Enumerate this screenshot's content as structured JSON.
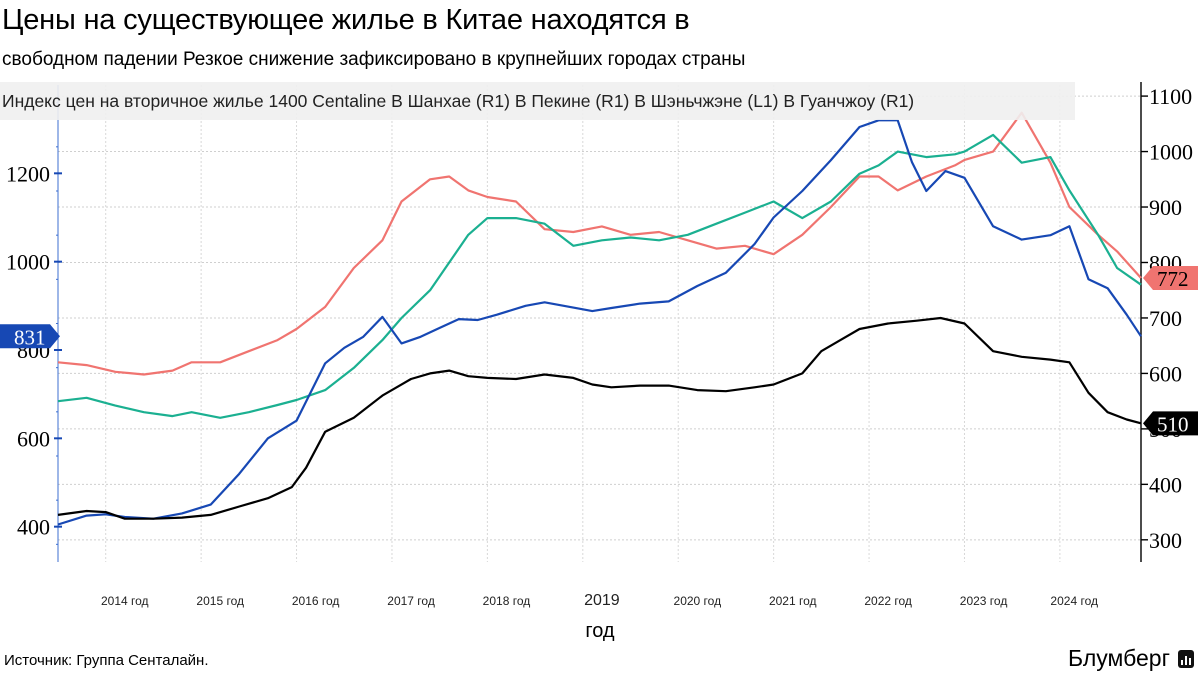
{
  "header": {
    "title": "Цены на существующее жилье в Китае находятся в",
    "subtitle": "свободном падении Резкое снижение зафиксировано в крупнейших городах страны"
  },
  "footer": {
    "source": "Источник: Группа Сенталайн.",
    "brand": "Блумберг",
    "brand_icon": "bar-chart-icon"
  },
  "chart_data": {
    "type": "line",
    "legend_text": "Индекс цен на вторичное жилье 1400 Centaline В Шанхае (R1) В Пекине (R1) В Шэньчжэне (L1) В Гуанчжоу (R1)",
    "legend_position": "top-left",
    "xlabel": "год",
    "x_range": [
      2013.5,
      2024.85
    ],
    "x_ticks": [
      {
        "x": 2014.2,
        "label": "2014 год"
      },
      {
        "x": 2015.2,
        "label": "2015 год"
      },
      {
        "x": 2016.2,
        "label": "2016 год"
      },
      {
        "x": 2017.2,
        "label": "2017 год"
      },
      {
        "x": 2018.2,
        "label": "2018 год"
      },
      {
        "x": 2019.2,
        "label": "2019"
      },
      {
        "x": 2020.2,
        "label": "2020 год"
      },
      {
        "x": 2021.2,
        "label": "2021 год"
      },
      {
        "x": 2022.2,
        "label": "2022 год"
      },
      {
        "x": 2023.2,
        "label": "2023 год"
      },
      {
        "x": 2024.15,
        "label": "2024 год"
      }
    ],
    "left_axis": {
      "ylim": [
        320,
        1400
      ],
      "ticks": [
        400,
        600,
        800,
        1000,
        1200
      ]
    },
    "right_axis": {
      "ylim": [
        260,
        1120
      ],
      "ticks": [
        300,
        400,
        500,
        600,
        700,
        800,
        900,
        1000,
        1100
      ]
    },
    "grid": true,
    "end_labels": [
      {
        "series": "Шэньчжэнь",
        "label": "831",
        "value": 831,
        "axis": "left",
        "side": "left",
        "color": "#1748b4",
        "text_color": "#ffffff"
      },
      {
        "series": "Шанхай",
        "label": "772",
        "value": 772,
        "axis": "right",
        "side": "right",
        "color": "#f07470",
        "text_color": "#000000"
      },
      {
        "series": "Гуанчжоу",
        "label": "510",
        "value": 510,
        "axis": "right",
        "side": "right",
        "color": "#000000",
        "text_color": "#ffffff"
      }
    ],
    "series": [
      {
        "name": "В Шанхае",
        "axis": "right",
        "color": "#f07470",
        "points": [
          [
            2013.5,
            620
          ],
          [
            2013.8,
            615
          ],
          [
            2014.1,
            603
          ],
          [
            2014.4,
            598
          ],
          [
            2014.7,
            605
          ],
          [
            2014.9,
            620
          ],
          [
            2015.2,
            620
          ],
          [
            2015.5,
            640
          ],
          [
            2015.8,
            660
          ],
          [
            2016.0,
            680
          ],
          [
            2016.3,
            720
          ],
          [
            2016.6,
            790
          ],
          [
            2016.9,
            840
          ],
          [
            2017.1,
            910
          ],
          [
            2017.4,
            950
          ],
          [
            2017.6,
            955
          ],
          [
            2017.8,
            930
          ],
          [
            2018.0,
            918
          ],
          [
            2018.3,
            910
          ],
          [
            2018.6,
            860
          ],
          [
            2018.9,
            855
          ],
          [
            2019.2,
            865
          ],
          [
            2019.5,
            850
          ],
          [
            2019.8,
            855
          ],
          [
            2020.1,
            840
          ],
          [
            2020.4,
            825
          ],
          [
            2020.7,
            830
          ],
          [
            2021.0,
            815
          ],
          [
            2021.3,
            850
          ],
          [
            2021.6,
            900
          ],
          [
            2021.9,
            955
          ],
          [
            2022.1,
            955
          ],
          [
            2022.3,
            930
          ],
          [
            2022.6,
            955
          ],
          [
            2022.9,
            975
          ],
          [
            2023.0,
            985
          ],
          [
            2023.3,
            1000
          ],
          [
            2023.6,
            1070
          ],
          [
            2023.9,
            980
          ],
          [
            2024.1,
            900
          ],
          [
            2024.4,
            850
          ],
          [
            2024.6,
            820
          ],
          [
            2024.85,
            772
          ]
        ]
      },
      {
        "name": "В Пекине",
        "axis": "right",
        "color": "#1bb091",
        "points": [
          [
            2013.5,
            550
          ],
          [
            2013.8,
            556
          ],
          [
            2014.1,
            542
          ],
          [
            2014.4,
            530
          ],
          [
            2014.7,
            523
          ],
          [
            2014.9,
            530
          ],
          [
            2015.2,
            520
          ],
          [
            2015.5,
            530
          ],
          [
            2015.8,
            543
          ],
          [
            2016.0,
            552
          ],
          [
            2016.3,
            570
          ],
          [
            2016.6,
            610
          ],
          [
            2016.9,
            660
          ],
          [
            2017.1,
            700
          ],
          [
            2017.4,
            750
          ],
          [
            2017.6,
            800
          ],
          [
            2017.8,
            850
          ],
          [
            2018.0,
            880
          ],
          [
            2018.3,
            880
          ],
          [
            2018.6,
            870
          ],
          [
            2018.9,
            830
          ],
          [
            2019.2,
            840
          ],
          [
            2019.5,
            845
          ],
          [
            2019.8,
            840
          ],
          [
            2020.1,
            850
          ],
          [
            2020.4,
            870
          ],
          [
            2020.7,
            890
          ],
          [
            2021.0,
            910
          ],
          [
            2021.3,
            880
          ],
          [
            2021.6,
            910
          ],
          [
            2021.9,
            960
          ],
          [
            2022.1,
            975
          ],
          [
            2022.3,
            1000
          ],
          [
            2022.6,
            990
          ],
          [
            2022.9,
            995
          ],
          [
            2023.0,
            1000
          ],
          [
            2023.3,
            1030
          ],
          [
            2023.6,
            980
          ],
          [
            2023.9,
            990
          ],
          [
            2024.1,
            930
          ],
          [
            2024.4,
            850
          ],
          [
            2024.6,
            790
          ],
          [
            2024.85,
            760
          ]
        ]
      },
      {
        "name": "В Шэньчжэне",
        "axis": "left",
        "color": "#1748b4",
        "points": [
          [
            2013.5,
            405
          ],
          [
            2013.8,
            425
          ],
          [
            2014.0,
            428
          ],
          [
            2014.2,
            422
          ],
          [
            2014.5,
            418
          ],
          [
            2014.8,
            430
          ],
          [
            2015.1,
            450
          ],
          [
            2015.4,
            520
          ],
          [
            2015.7,
            600
          ],
          [
            2016.0,
            640
          ],
          [
            2016.3,
            770
          ],
          [
            2016.5,
            805
          ],
          [
            2016.7,
            830
          ],
          [
            2016.9,
            875
          ],
          [
            2017.1,
            815
          ],
          [
            2017.3,
            830
          ],
          [
            2017.5,
            850
          ],
          [
            2017.7,
            870
          ],
          [
            2017.9,
            868
          ],
          [
            2018.1,
            880
          ],
          [
            2018.4,
            900
          ],
          [
            2018.6,
            908
          ],
          [
            2018.9,
            896
          ],
          [
            2019.1,
            888
          ],
          [
            2019.3,
            895
          ],
          [
            2019.6,
            905
          ],
          [
            2019.9,
            910
          ],
          [
            2020.2,
            945
          ],
          [
            2020.5,
            975
          ],
          [
            2020.8,
            1040
          ],
          [
            2021.0,
            1100
          ],
          [
            2021.3,
            1160
          ],
          [
            2021.6,
            1230
          ],
          [
            2021.9,
            1305
          ],
          [
            2022.1,
            1320
          ],
          [
            2022.3,
            1320
          ],
          [
            2022.45,
            1225
          ],
          [
            2022.6,
            1160
          ],
          [
            2022.8,
            1205
          ],
          [
            2023.0,
            1190
          ],
          [
            2023.3,
            1080
          ],
          [
            2023.6,
            1050
          ],
          [
            2023.9,
            1060
          ],
          [
            2024.1,
            1080
          ],
          [
            2024.3,
            960
          ],
          [
            2024.5,
            940
          ],
          [
            2024.7,
            880
          ],
          [
            2024.85,
            831
          ]
        ]
      },
      {
        "name": "В Гуанчжоу",
        "axis": "right",
        "color": "#000000",
        "points": [
          [
            2013.5,
            345
          ],
          [
            2013.8,
            352
          ],
          [
            2014.0,
            350
          ],
          [
            2014.2,
            338
          ],
          [
            2014.5,
            338
          ],
          [
            2014.8,
            340
          ],
          [
            2015.1,
            345
          ],
          [
            2015.4,
            360
          ],
          [
            2015.7,
            375
          ],
          [
            2015.95,
            395
          ],
          [
            2016.1,
            430
          ],
          [
            2016.3,
            495
          ],
          [
            2016.6,
            520
          ],
          [
            2016.9,
            560
          ],
          [
            2017.2,
            590
          ],
          [
            2017.4,
            600
          ],
          [
            2017.6,
            605
          ],
          [
            2017.8,
            595
          ],
          [
            2018.0,
            592
          ],
          [
            2018.3,
            590
          ],
          [
            2018.6,
            598
          ],
          [
            2018.9,
            592
          ],
          [
            2019.1,
            580
          ],
          [
            2019.3,
            575
          ],
          [
            2019.6,
            578
          ],
          [
            2019.9,
            578
          ],
          [
            2020.2,
            570
          ],
          [
            2020.5,
            568
          ],
          [
            2020.8,
            575
          ],
          [
            2021.0,
            580
          ],
          [
            2021.3,
            600
          ],
          [
            2021.5,
            640
          ],
          [
            2021.7,
            660
          ],
          [
            2021.9,
            680
          ],
          [
            2022.2,
            690
          ],
          [
            2022.5,
            695
          ],
          [
            2022.75,
            700
          ],
          [
            2023.0,
            690
          ],
          [
            2023.3,
            640
          ],
          [
            2023.6,
            630
          ],
          [
            2023.9,
            625
          ],
          [
            2024.1,
            620
          ],
          [
            2024.3,
            565
          ],
          [
            2024.5,
            530
          ],
          [
            2024.7,
            517
          ],
          [
            2024.85,
            510
          ]
        ]
      }
    ]
  }
}
